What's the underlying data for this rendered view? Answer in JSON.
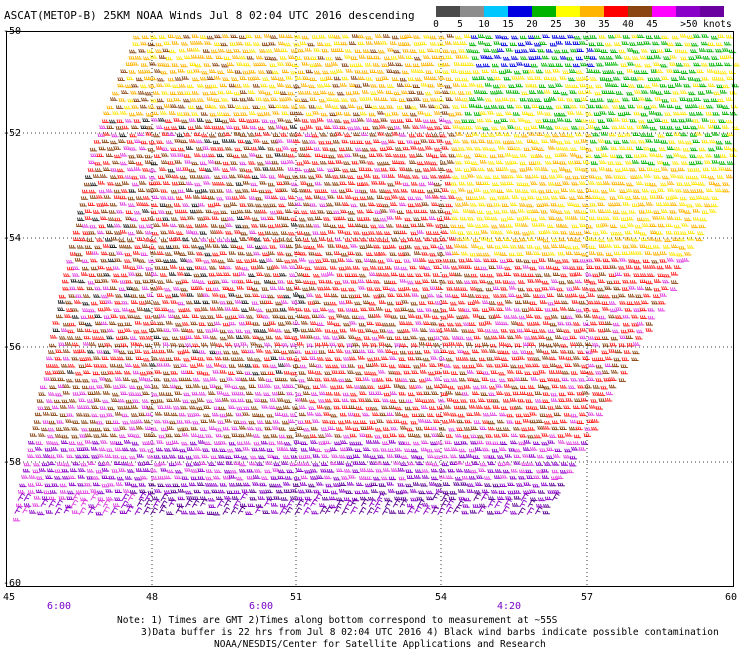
{
  "title": "ASCAT(METOP-B) 25KM NOAA Winds  Jul  8 02:04 UTC 2016 descending",
  "legend": {
    "labels": [
      "0",
      "5",
      "10",
      "15",
      "20",
      "25",
      "30",
      "35",
      "40",
      "45",
      ">50 knots"
    ],
    "colors": [
      "#4a4a4a",
      "#8c8c8c",
      "#00c8ff",
      "#0000e0",
      "#00b400",
      "#ffff00",
      "#ffb400",
      "#ff0000",
      "#8b4513",
      "#ff00ff",
      "#8b00c8",
      "#6a00a0"
    ]
  },
  "axes": {
    "lat_labels": [
      "-50",
      "-52",
      "-54",
      "-56",
      "-58",
      "-60"
    ],
    "lon_labels": [
      "45",
      "48",
      "51",
      "54",
      "57",
      "60"
    ]
  },
  "time_labels": [
    "6:00",
    "6:00",
    "4:20"
  ],
  "notes": {
    "line1": "Note: 1) Times are GMT 2)Times along bottom correspond to measurement at ~55S",
    "line2": "3)Data buffer is 22 hrs from Jul  8 02:04 UTC 2016 4) Black wind barbs indicate possible contamination",
    "line3": "NOAA/NESDIS/Center for Satellite Applications and Research"
  }
}
